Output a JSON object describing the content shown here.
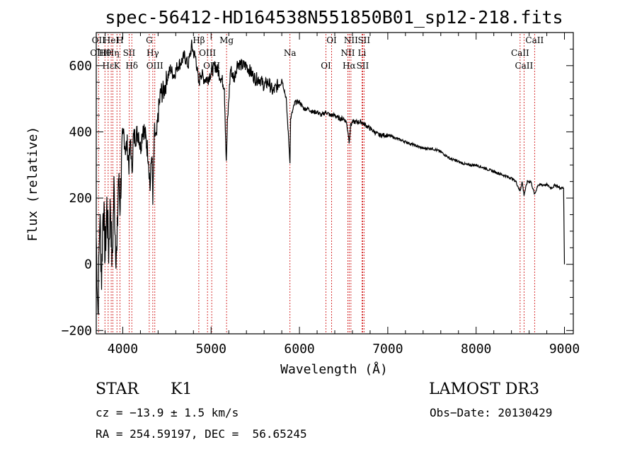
{
  "chart_data": {
    "type": "line",
    "title": "spec-56412-HD164538N551850B01_sp12-218.fits",
    "xlabel": "Wavelength (Å)",
    "ylabel": "Flux (relative)",
    "xlim": [
      3700,
      9100
    ],
    "ylim": [
      -210,
      700
    ],
    "xticks": [
      4000,
      5000,
      6000,
      7000,
      8000,
      9000
    ],
    "yticks": [
      -200,
      0,
      200,
      400,
      600
    ],
    "series": [
      {
        "x": [
          3700,
          3720,
          3740,
          3760,
          3780,
          3800,
          3820,
          3840,
          3860,
          3880,
          3900,
          3920,
          3934,
          3950,
          3968,
          3990,
          4010,
          4030,
          4050,
          4070,
          4090,
          4102,
          4120,
          4150,
          4180,
          4200,
          4230,
          4260,
          4290,
          4310,
          4330,
          4340,
          4360,
          4380,
          4400,
          4430,
          4460,
          4500,
          4540,
          4580,
          4620,
          4660,
          4700,
          4740,
          4780,
          4800,
          4830,
          4861,
          4880,
          4920,
          4960,
          5000,
          5050,
          5100,
          5150,
          5172,
          5184,
          5220,
          5260,
          5300,
          5350,
          5400,
          5450,
          5500,
          5550,
          5600,
          5650,
          5700,
          5750,
          5800,
          5850,
          5893,
          5900,
          5950,
          6000,
          6050,
          6100,
          6150,
          6200,
          6250,
          6300,
          6350,
          6400,
          6450,
          6500,
          6530,
          6550,
          6563,
          6580,
          6600,
          6650,
          6700,
          6750,
          6800,
          6850,
          6900,
          6950,
          7000,
          7100,
          7200,
          7300,
          7400,
          7500,
          7600,
          7700,
          7800,
          7900,
          8000,
          8100,
          8200,
          8300,
          8400,
          8450,
          8498,
          8520,
          8542,
          8580,
          8620,
          8662,
          8700,
          8750,
          8800,
          8850,
          8900,
          8950,
          8990,
          9000
        ],
        "y": [
          80,
          -150,
          150,
          -40,
          200,
          20,
          180,
          40,
          190,
          -10,
          230,
          60,
          20,
          260,
          180,
          320,
          400,
          350,
          360,
          300,
          380,
          270,
          380,
          390,
          400,
          350,
          420,
          380,
          330,
          230,
          350,
          180,
          400,
          370,
          450,
          520,
          520,
          560,
          590,
          570,
          600,
          610,
          630,
          600,
          660,
          640,
          620,
          540,
          580,
          560,
          560,
          580,
          600,
          570,
          540,
          300,
          420,
          590,
          560,
          610,
          600,
          600,
          580,
          560,
          560,
          540,
          550,
          520,
          540,
          560,
          500,
          310,
          440,
          490,
          490,
          470,
          470,
          460,
          460,
          450,
          460,
          450,
          450,
          440,
          440,
          430,
          400,
          370,
          420,
          430,
          430,
          430,
          420,
          410,
          400,
          390,
          390,
          390,
          380,
          370,
          360,
          350,
          350,
          340,
          320,
          310,
          300,
          300,
          290,
          280,
          270,
          260,
          250,
          220,
          250,
          210,
          250,
          250,
          210,
          240,
          240,
          240,
          230,
          240,
          230,
          230,
          0
        ]
      }
    ],
    "line_markers": [
      {
        "wl": 3726,
        "labels": [
          "OII",
          "OIII"
        ]
      },
      {
        "wl": 3798,
        "labels": [
          "Hθ"
        ]
      },
      {
        "wl": 3835,
        "labels": [
          "Hε"
        ]
      },
      {
        "wl": 3869,
        "labels": [
          "HeI"
        ]
      },
      {
        "wl": 3889,
        "labels": [
          "Hη"
        ]
      },
      {
        "wl": 3934,
        "labels": [
          "K"
        ]
      },
      {
        "wl": 3968,
        "labels": [
          "H"
        ]
      },
      {
        "wl": 4072,
        "labels": [
          "SII"
        ]
      },
      {
        "wl": 4102,
        "labels": [
          "Hδ"
        ]
      },
      {
        "wl": 4300,
        "labels": [
          "G"
        ]
      },
      {
        "wl": 4340,
        "labels": [
          "Hγ"
        ]
      },
      {
        "wl": 4363,
        "labels": [
          "OIII"
        ]
      },
      {
        "wl": 4861,
        "labels": [
          "Hβ"
        ]
      },
      {
        "wl": 4959,
        "labels": [
          "OIII"
        ]
      },
      {
        "wl": 5007,
        "labels": [
          "OIII"
        ]
      },
      {
        "wl": 5175,
        "labels": [
          "Mg"
        ]
      },
      {
        "wl": 5893,
        "labels": [
          "Na"
        ]
      },
      {
        "wl": 6300,
        "labels": [
          "OI"
        ]
      },
      {
        "wl": 6364,
        "labels": [
          "OI"
        ]
      },
      {
        "wl": 6548,
        "labels": [
          "NII"
        ]
      },
      {
        "wl": 6563,
        "labels": [
          "Hα"
        ]
      },
      {
        "wl": 6583,
        "labels": [
          "NII"
        ]
      },
      {
        "wl": 6708,
        "labels": [
          "Li"
        ]
      },
      {
        "wl": 6716,
        "labels": [
          "SII"
        ]
      },
      {
        "wl": 6731,
        "labels": [
          "SII"
        ]
      },
      {
        "wl": 8498,
        "labels": [
          "CaII"
        ]
      },
      {
        "wl": 8542,
        "labels": [
          "CaII"
        ]
      },
      {
        "wl": 8662,
        "labels": [
          "CaII"
        ]
      }
    ],
    "marker_color": "#cc0000",
    "line_color": "#000000"
  },
  "info": {
    "class": "STAR",
    "subclass": "K1",
    "survey": "LAMOST DR3",
    "cz": "cz = −13.9 ± 1.5 km/s",
    "obs_date": "Obs−Date: 20130429",
    "coords": "RA = 254.59197, DEC =  56.65245"
  }
}
